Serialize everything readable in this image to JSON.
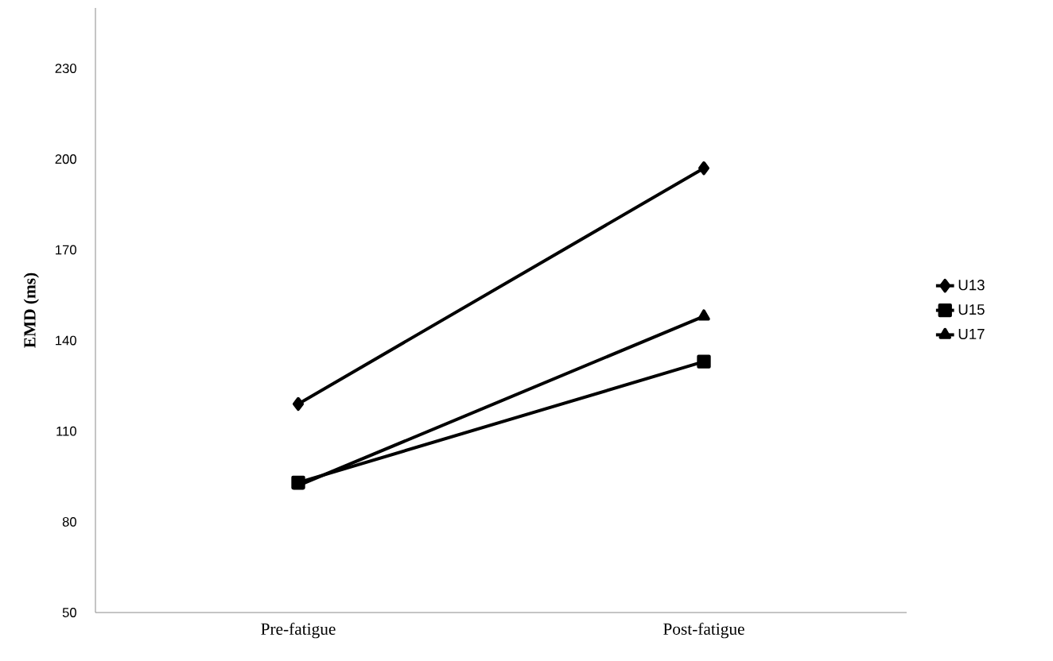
{
  "chart_data": {
    "type": "line",
    "ylabel": "EMD (ms)",
    "categories": [
      "Pre-fatigue",
      "Post-fatigue"
    ],
    "series": [
      {
        "name": "U13",
        "color": "#000000",
        "marker": "diamond",
        "values": [
          119,
          197
        ]
      },
      {
        "name": "U15",
        "color": "#000000",
        "marker": "square",
        "values": [
          93,
          133
        ]
      },
      {
        "name": "U17",
        "color": "#000000",
        "marker": "triangle",
        "values": [
          92,
          148
        ]
      }
    ],
    "ylim": [
      50,
      250
    ],
    "yticks": [
      50,
      80,
      110,
      140,
      170,
      200,
      230
    ],
    "grid": false,
    "legend": "right",
    "line_style": "solid"
  }
}
